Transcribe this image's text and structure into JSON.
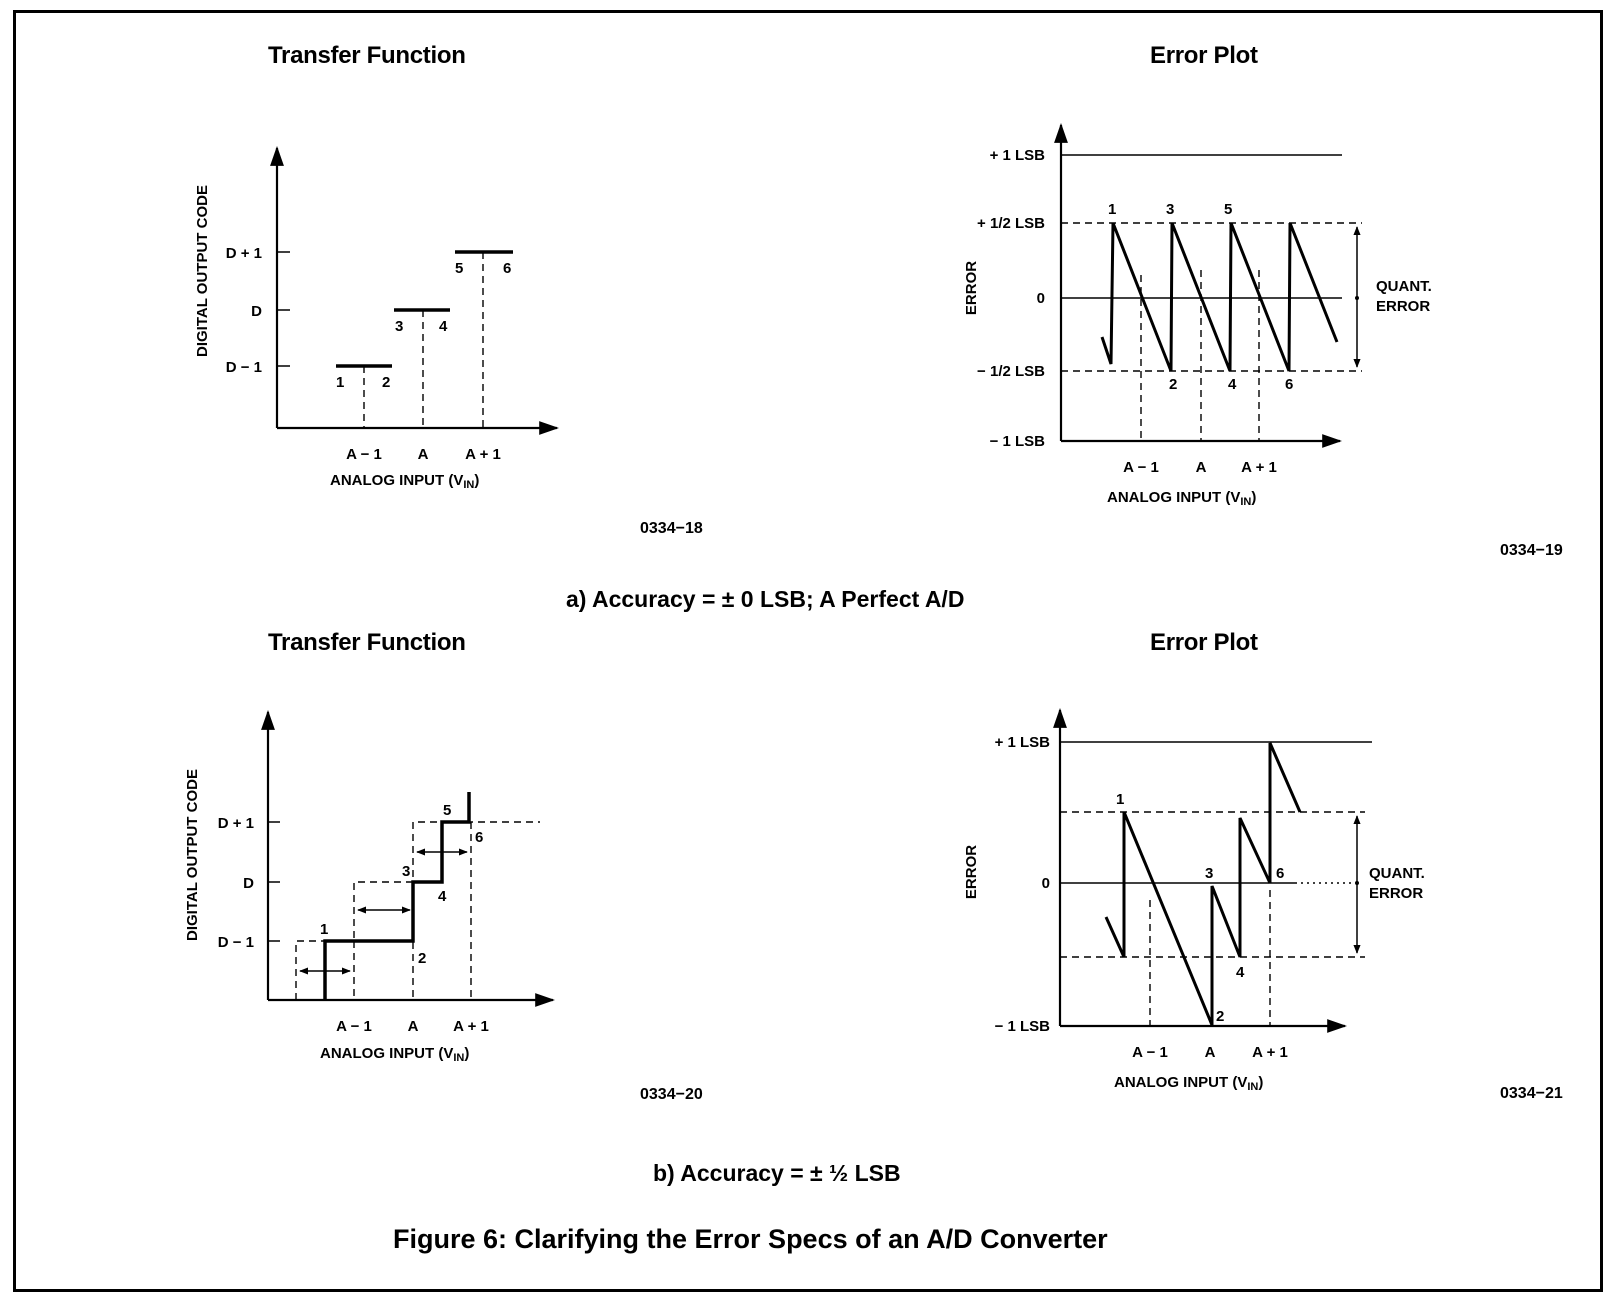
{
  "panel_a": {
    "transfer": {
      "title": "Transfer Function",
      "y_label": "DIGITAL OUTPUT CODE",
      "y_ticks": [
        "D + 1",
        "D",
        "D − 1"
      ],
      "x_ticks": [
        "A − 1",
        "A",
        "A + 1"
      ],
      "x_label_main": "ANALOG INPUT (V",
      "x_label_sub": "IN",
      "x_label_end": ")",
      "points": [
        "1",
        "2",
        "3",
        "4",
        "5",
        "6"
      ],
      "code": "0334−18"
    },
    "error": {
      "title": "Error Plot",
      "y_label": "ERROR",
      "y_ticks": [
        "+ 1 LSB",
        "+ 1/2 LSB",
        "0",
        "− 1/2 LSB",
        "− 1 LSB"
      ],
      "x_ticks": [
        "A − 1",
        "A",
        "A + 1"
      ],
      "x_label_main": "ANALOG INPUT (V",
      "x_label_sub": "IN",
      "x_label_end": ")",
      "points": [
        "1",
        "2",
        "3",
        "4",
        "5",
        "6"
      ],
      "quant_label_1": "QUANT.",
      "quant_label_2": "ERROR",
      "code": "0334−19"
    },
    "caption": "a) Accuracy = ± 0 LSB; A Perfect A/D"
  },
  "panel_b": {
    "transfer": {
      "title": "Transfer Function",
      "y_label": "DIGITAL OUTPUT CODE",
      "y_ticks": [
        "D + 1",
        "D",
        "D − 1"
      ],
      "x_ticks": [
        "A − 1",
        "A",
        "A + 1"
      ],
      "x_label_main": "ANALOG INPUT (V",
      "x_label_sub": "IN",
      "x_label_end": ")",
      "points": [
        "1",
        "2",
        "3",
        "4",
        "5",
        "6"
      ],
      "code": "0334−20"
    },
    "error": {
      "title": "Error Plot",
      "y_label": "ERROR",
      "y_ticks": [
        "+ 1 LSB",
        "0",
        "− 1 LSB"
      ],
      "x_ticks": [
        "A − 1",
        "A",
        "A + 1"
      ],
      "x_label_main": "ANALOG INPUT (V",
      "x_label_sub": "IN",
      "x_label_end": ")",
      "points": [
        "1",
        "2",
        "3",
        "4",
        "6"
      ],
      "quant_label_1": "QUANT.",
      "quant_label_2": "ERROR",
      "code": "0334−21"
    },
    "caption": "b) Accuracy = ± ½ LSB"
  },
  "figure_caption": "Figure 6: Clarifying the Error Specs of an A/D Converter"
}
